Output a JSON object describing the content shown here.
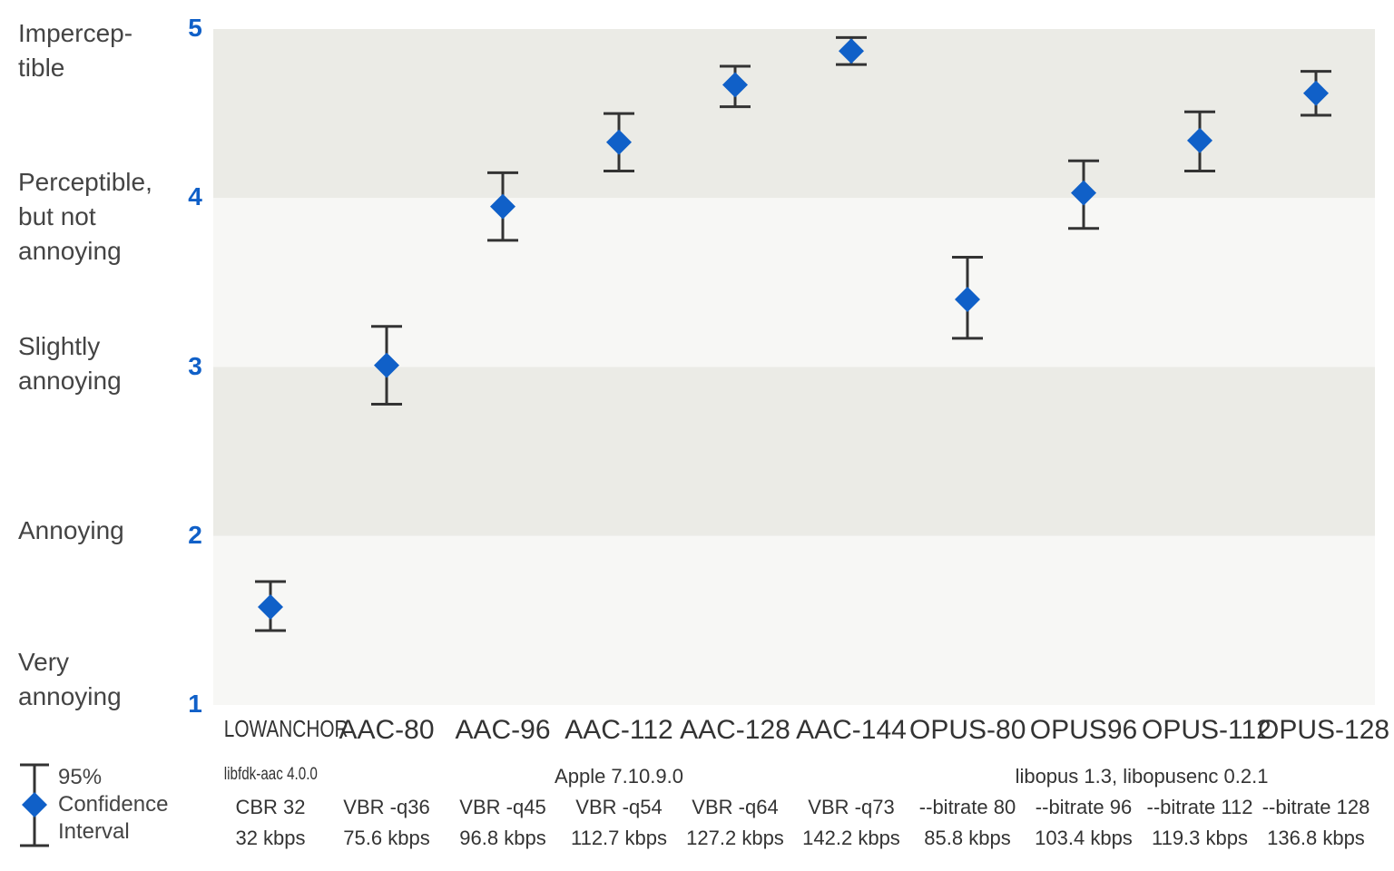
{
  "chart_data": {
    "type": "scatter",
    "subtype": "mean-with-95%-confidence-interval",
    "categories": [
      "LOWANCHOR",
      "AAC-80",
      "AAC-96",
      "AAC-112",
      "AAC-128",
      "AAC-144",
      "OPUS-80",
      "OPUS96",
      "OPUS-112",
      "OPUS-128"
    ],
    "settings": [
      "CBR 32",
      "VBR -q36",
      "VBR -q45",
      "VBR -q54",
      "VBR -q64",
      "VBR -q73",
      "--bitrate 80",
      "--bitrate 96",
      "--bitrate 112",
      "--bitrate 128"
    ],
    "bitrates": [
      "32 kbps",
      "75.6 kbps",
      "96.8 kbps",
      "112.7 kbps",
      "127.2 kbps",
      "142.2 kbps",
      "85.8 kbps",
      "103.4 kbps",
      "119.3 kbps",
      "136.8 kbps"
    ],
    "encoder_groups": [
      {
        "label": "libfdk-aac 4.0.0",
        "from": 0,
        "to": 0
      },
      {
        "label": "Apple 7.10.9.0",
        "from": 1,
        "to": 5
      },
      {
        "label": "libopus 1.3, libopusenc 0.2.1",
        "from": 6,
        "to": 9
      }
    ],
    "values": [
      1.58,
      3.01,
      3.95,
      4.33,
      4.67,
      4.87,
      3.4,
      4.03,
      4.34,
      4.62
    ],
    "ci_low": [
      1.44,
      2.78,
      3.75,
      4.16,
      4.54,
      4.79,
      3.17,
      3.82,
      4.16,
      4.49
    ],
    "ci_high": [
      1.73,
      3.24,
      4.15,
      4.5,
      4.78,
      4.95,
      3.65,
      4.22,
      4.51,
      4.75
    ],
    "ylim": [
      1,
      5
    ],
    "yticks": [
      "1",
      "2",
      "3",
      "4",
      "5"
    ],
    "quality_labels": [
      "Impercep-\ntible",
      "Perceptible,\nbut not\nannoying",
      "Slightly\nannoying",
      "Annoying",
      "Very\nannoying"
    ],
    "legend": "95%\nConfidence\nInterval",
    "colors": {
      "marker": "#1060c8",
      "errorbar": "#333333",
      "band_dark": "#ebebe6",
      "band_light": "#f7f7f5",
      "tick_label": "#1060c8"
    }
  }
}
